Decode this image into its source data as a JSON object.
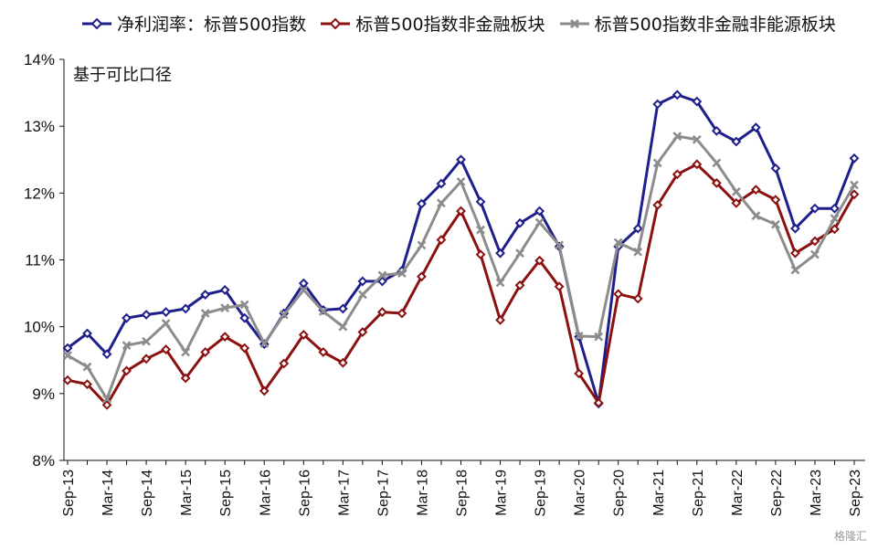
{
  "chart_data": {
    "type": "line",
    "title": "",
    "annotation": "基于可比口径",
    "legend_position": "top",
    "grid": false,
    "ylim": [
      8,
      14
    ],
    "y_ticks": [
      "8%",
      "9%",
      "10%",
      "11%",
      "12%",
      "13%",
      "14%"
    ],
    "x_ticks": [
      "Sep-13",
      "Mar-14",
      "Sep-14",
      "Mar-15",
      "Sep-15",
      "Mar-16",
      "Sep-16",
      "Mar-17",
      "Sep-17",
      "Mar-18",
      "Sep-18",
      "Mar-19",
      "Sep-19",
      "Mar-20",
      "Sep-20",
      "Mar-21",
      "Sep-21",
      "Mar-22",
      "Sep-22",
      "Mar-23",
      "Sep-23"
    ],
    "x": [
      "Sep-13",
      "Dec-13",
      "Mar-14",
      "Jun-14",
      "Sep-14",
      "Dec-14",
      "Mar-15",
      "Jun-15",
      "Sep-15",
      "Dec-15",
      "Mar-16",
      "Jun-16",
      "Sep-16",
      "Dec-16",
      "Mar-17",
      "Jun-17",
      "Sep-17",
      "Dec-17",
      "Mar-18",
      "Jun-18",
      "Sep-18",
      "Dec-18",
      "Mar-19",
      "Jun-19",
      "Sep-19",
      "Dec-19",
      "Mar-20",
      "Jun-20",
      "Sep-20",
      "Dec-20",
      "Mar-21",
      "Jun-21",
      "Sep-21",
      "Dec-21",
      "Mar-22",
      "Jun-22",
      "Sep-22",
      "Dec-22",
      "Mar-23",
      "Jun-23",
      "Sep-23"
    ],
    "series": [
      {
        "name": "净利润率：标普500指数",
        "color": "#1F1F8C",
        "marker": "diamond",
        "values": [
          9.68,
          9.9,
          9.59,
          10.13,
          10.18,
          10.22,
          10.27,
          10.48,
          10.55,
          10.13,
          9.74,
          10.2,
          10.65,
          10.25,
          10.27,
          10.68,
          10.68,
          10.84,
          11.84,
          12.14,
          12.5,
          11.87,
          11.1,
          11.55,
          11.73,
          11.2,
          9.85,
          8.85,
          11.2,
          11.47,
          13.33,
          13.47,
          13.37,
          12.93,
          12.77,
          12.98,
          12.37,
          11.47,
          11.77,
          11.77,
          12.52
        ]
      },
      {
        "name": "标普500指数非金融板块",
        "color": "#8B1010",
        "marker": "diamond",
        "values": [
          9.2,
          9.14,
          8.83,
          9.34,
          9.52,
          9.66,
          9.23,
          9.62,
          9.85,
          9.68,
          9.04,
          9.45,
          9.88,
          9.62,
          9.46,
          9.92,
          10.22,
          10.2,
          10.75,
          11.3,
          11.73,
          11.08,
          10.1,
          10.62,
          10.99,
          10.6,
          9.3,
          8.86,
          10.49,
          10.42,
          11.82,
          12.28,
          12.43,
          12.15,
          11.85,
          12.05,
          11.9,
          11.1,
          11.28,
          11.46,
          11.98
        ]
      },
      {
        "name": "标普500指数非金融非能源板块",
        "color": "#8C8C8C",
        "marker": "x",
        "values": [
          9.57,
          9.4,
          8.92,
          9.72,
          9.78,
          10.05,
          9.62,
          10.2,
          10.28,
          10.33,
          9.75,
          10.18,
          10.55,
          10.23,
          10.0,
          10.48,
          10.77,
          10.8,
          11.22,
          11.85,
          12.17,
          11.45,
          10.66,
          11.1,
          11.56,
          11.22,
          9.86,
          9.85,
          11.26,
          11.12,
          12.45,
          12.85,
          12.8,
          12.45,
          12.02,
          11.66,
          11.53,
          10.85,
          11.08,
          11.62,
          12.12
        ]
      }
    ]
  },
  "watermark": "格隆汇"
}
